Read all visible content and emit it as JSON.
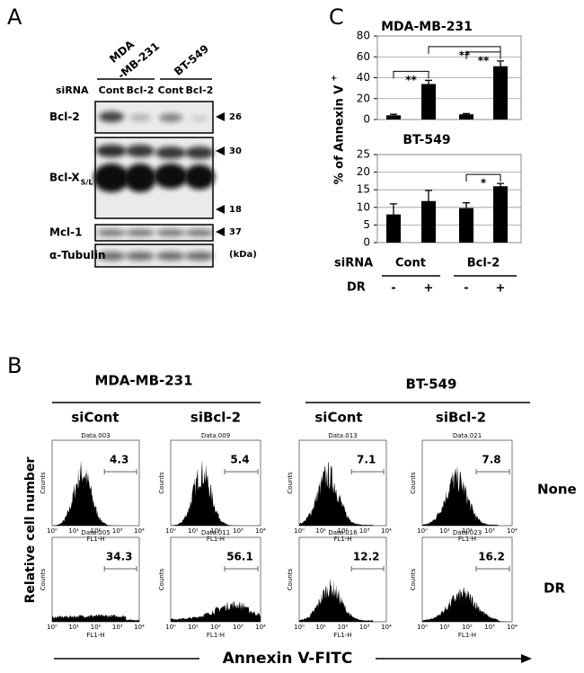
{
  "panel_a": {
    "label": "A",
    "cell_lines": [
      [
        "MDA",
        "-MB-231"
      ],
      [
        "BT-549"
      ]
    ],
    "sirna_label": "siRNA",
    "lanes": [
      "Cont",
      "Bcl-2",
      "Cont",
      "Bcl-2"
    ],
    "blots": [
      {
        "name": "Bcl-2",
        "markers": [
          "26"
        ]
      },
      {
        "name": "Bcl-X",
        "subscript": "S/L",
        "markers": [
          "30",
          "18"
        ]
      },
      {
        "name": "Mcl-1",
        "markers": [
          "37"
        ]
      },
      {
        "name": "α-Tubulin",
        "markers": []
      }
    ],
    "unit": "(kDa)"
  },
  "panel_c": {
    "label": "C",
    "ylabel": "% of Annexin V",
    "ylabel_sup": "+",
    "row_labels": [
      "siRNA",
      "DR"
    ],
    "groups": [
      "Cont",
      "Bcl-2"
    ],
    "treatments": [
      "-",
      "+",
      "-",
      "+"
    ]
  },
  "chart_data": [
    {
      "type": "bar",
      "title": "MDA-MB-231",
      "values": [
        4,
        34,
        5,
        51
      ],
      "errors": [
        1,
        3.5,
        0.7,
        5
      ],
      "color": "#000000",
      "ylim": [
        0,
        80
      ],
      "yticks": [
        0,
        20,
        40,
        60,
        80
      ],
      "grid": true,
      "annotations": [
        {
          "text": "**",
          "bars": [
            0,
            1
          ]
        },
        {
          "text": "**",
          "bars": [
            2,
            3
          ]
        },
        {
          "text": "**",
          "bars": [
            1,
            3
          ]
        }
      ]
    },
    {
      "type": "bar",
      "title": "BT-549",
      "values": [
        8,
        11.8,
        9.8,
        16
      ],
      "errors": [
        3,
        3,
        1.5,
        0.8
      ],
      "color": "#000000",
      "ylim": [
        0,
        25
      ],
      "yticks": [
        0,
        5,
        10,
        15,
        20,
        25
      ],
      "grid": true,
      "annotations": [
        {
          "text": "*",
          "bars": [
            2,
            3
          ]
        }
      ]
    }
  ],
  "panel_b": {
    "label": "B",
    "groups": [
      {
        "name": "MDA-MB-231",
        "conditions": [
          "siCont",
          "siBcl-2"
        ]
      },
      {
        "name": "BT-549",
        "conditions": [
          "siCont",
          "siBcl-2"
        ]
      }
    ],
    "row_labels": [
      "None",
      "DR"
    ],
    "ylabel": "Relative cell number",
    "xlabel": "Annexin V-FITC",
    "plot_ylabel": "Counts",
    "plot_xlabel": "FL1-H",
    "plot_xticks": [
      "10⁰",
      "10¹",
      "10²",
      "10³",
      "10⁴"
    ],
    "plots": [
      [
        {
          "title": "Data.003",
          "percent": 4.3
        },
        {
          "title": "Data.009",
          "percent": 5.4
        },
        {
          "title": "Data.013",
          "percent": 7.1
        },
        {
          "title": "Data.021",
          "percent": 7.8
        }
      ],
      [
        {
          "title": "Data.005",
          "percent": 34.3
        },
        {
          "title": "Data.011",
          "percent": 56.1
        },
        {
          "title": "Data.016",
          "percent": 12.2
        },
        {
          "title": "Data.023",
          "percent": 16.2
        }
      ]
    ]
  }
}
